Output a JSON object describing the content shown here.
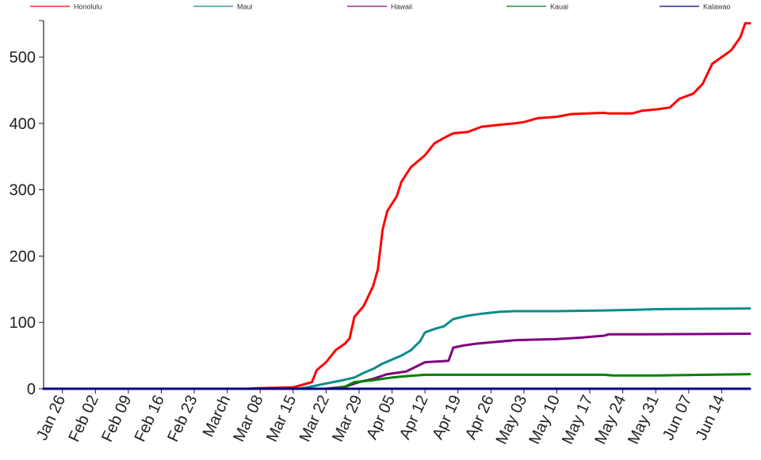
{
  "chart_data": {
    "type": "line",
    "title": "",
    "xlabel": "",
    "ylabel": "",
    "x_range": [
      "2020-01-22",
      "2020-06-20"
    ],
    "ylim": [
      0,
      555
    ],
    "yticks": [
      0,
      100,
      200,
      300,
      400,
      500
    ],
    "xticks": [
      {
        "date": "2020-01-26",
        "label": "Jan 26"
      },
      {
        "date": "2020-02-02",
        "label": "Feb 02"
      },
      {
        "date": "2020-02-09",
        "label": "Feb 09"
      },
      {
        "date": "2020-02-16",
        "label": "Feb 16"
      },
      {
        "date": "2020-02-23",
        "label": "Feb 23"
      },
      {
        "date": "2020-03-01",
        "label": "March"
      },
      {
        "date": "2020-03-08",
        "label": "Mar 08"
      },
      {
        "date": "2020-03-15",
        "label": "Mar 15"
      },
      {
        "date": "2020-03-22",
        "label": "Mar 22"
      },
      {
        "date": "2020-03-29",
        "label": "Mar 29"
      },
      {
        "date": "2020-04-05",
        "label": "Apr 05"
      },
      {
        "date": "2020-04-12",
        "label": "Apr 12"
      },
      {
        "date": "2020-04-19",
        "label": "Apr 19"
      },
      {
        "date": "2020-04-26",
        "label": "Apr 26"
      },
      {
        "date": "2020-05-03",
        "label": "May 03"
      },
      {
        "date": "2020-05-10",
        "label": "May 10"
      },
      {
        "date": "2020-05-17",
        "label": "May 17"
      },
      {
        "date": "2020-05-24",
        "label": "May 24"
      },
      {
        "date": "2020-05-31",
        "label": "May 31"
      },
      {
        "date": "2020-06-07",
        "label": "Jun 07"
      },
      {
        "date": "2020-06-14",
        "label": "Jun 14"
      }
    ],
    "legend_position": "top",
    "grid": false,
    "series": [
      {
        "name": "Honolulu",
        "color": "#ff0000",
        "points": [
          [
            "2020-01-22",
            0
          ],
          [
            "2020-03-05",
            0
          ],
          [
            "2020-03-08",
            1
          ],
          [
            "2020-03-15",
            2
          ],
          [
            "2020-03-17",
            6
          ],
          [
            "2020-03-19",
            10
          ],
          [
            "2020-03-20",
            28
          ],
          [
            "2020-03-22",
            40
          ],
          [
            "2020-03-24",
            58
          ],
          [
            "2020-03-26",
            68
          ],
          [
            "2020-03-27",
            76
          ],
          [
            "2020-03-28",
            108
          ],
          [
            "2020-03-30",
            125
          ],
          [
            "2020-04-01",
            155
          ],
          [
            "2020-04-02",
            180
          ],
          [
            "2020-04-03",
            240
          ],
          [
            "2020-04-04",
            268
          ],
          [
            "2020-04-06",
            290
          ],
          [
            "2020-04-07",
            312
          ],
          [
            "2020-04-09",
            334
          ],
          [
            "2020-04-11",
            346
          ],
          [
            "2020-04-12",
            352
          ],
          [
            "2020-04-14",
            370
          ],
          [
            "2020-04-16",
            378
          ],
          [
            "2020-04-18",
            385
          ],
          [
            "2020-04-21",
            387
          ],
          [
            "2020-04-24",
            395
          ],
          [
            "2020-04-28",
            398
          ],
          [
            "2020-05-01",
            400
          ],
          [
            "2020-05-03",
            402
          ],
          [
            "2020-05-06",
            408
          ],
          [
            "2020-05-10",
            410
          ],
          [
            "2020-05-13",
            414
          ],
          [
            "2020-05-20",
            416
          ],
          [
            "2020-05-21",
            415
          ],
          [
            "2020-05-26",
            415
          ],
          [
            "2020-05-28",
            419
          ],
          [
            "2020-05-31",
            421
          ],
          [
            "2020-06-03",
            424
          ],
          [
            "2020-06-05",
            437
          ],
          [
            "2020-06-08",
            445
          ],
          [
            "2020-06-10",
            460
          ],
          [
            "2020-06-12",
            490
          ],
          [
            "2020-06-14",
            500
          ],
          [
            "2020-06-16",
            510
          ],
          [
            "2020-06-18",
            530
          ],
          [
            "2020-06-19",
            551
          ],
          [
            "2020-06-20",
            551
          ]
        ]
      },
      {
        "name": "Maui",
        "color": "#0a8c8c",
        "points": [
          [
            "2020-01-22",
            0
          ],
          [
            "2020-03-16",
            0
          ],
          [
            "2020-03-18",
            2
          ],
          [
            "2020-03-20",
            5
          ],
          [
            "2020-03-22",
            8
          ],
          [
            "2020-03-25",
            12
          ],
          [
            "2020-03-28",
            17
          ],
          [
            "2020-03-30",
            24
          ],
          [
            "2020-04-01",
            30
          ],
          [
            "2020-04-03",
            38
          ],
          [
            "2020-04-05",
            44
          ],
          [
            "2020-04-07",
            50
          ],
          [
            "2020-04-09",
            58
          ],
          [
            "2020-04-11",
            72
          ],
          [
            "2020-04-12",
            85
          ],
          [
            "2020-04-14",
            90
          ],
          [
            "2020-04-16",
            94
          ],
          [
            "2020-04-18",
            105
          ],
          [
            "2020-04-21",
            110
          ],
          [
            "2020-04-24",
            113
          ],
          [
            "2020-04-28",
            116
          ],
          [
            "2020-05-01",
            117
          ],
          [
            "2020-05-10",
            117
          ],
          [
            "2020-05-20",
            118
          ],
          [
            "2020-05-27",
            119
          ],
          [
            "2020-05-31",
            120
          ],
          [
            "2020-06-20",
            121
          ]
        ]
      },
      {
        "name": "Hawaii",
        "color": "#800080",
        "points": [
          [
            "2020-01-22",
            0
          ],
          [
            "2020-03-22",
            0
          ],
          [
            "2020-03-26",
            3
          ],
          [
            "2020-03-29",
            10
          ],
          [
            "2020-04-01",
            15
          ],
          [
            "2020-04-04",
            22
          ],
          [
            "2020-04-08",
            26
          ],
          [
            "2020-04-10",
            33
          ],
          [
            "2020-04-12",
            40
          ],
          [
            "2020-04-17",
            42
          ],
          [
            "2020-04-18",
            62
          ],
          [
            "2020-04-20",
            65
          ],
          [
            "2020-04-23",
            68
          ],
          [
            "2020-04-26",
            70
          ],
          [
            "2020-05-01",
            73
          ],
          [
            "2020-05-05",
            74
          ],
          [
            "2020-05-10",
            75
          ],
          [
            "2020-05-15",
            77
          ],
          [
            "2020-05-20",
            80
          ],
          [
            "2020-05-21",
            82
          ],
          [
            "2020-05-28",
            82
          ],
          [
            "2020-06-20",
            83
          ]
        ]
      },
      {
        "name": "Kauai",
        "color": "#008000",
        "points": [
          [
            "2020-01-22",
            0
          ],
          [
            "2020-03-23",
            0
          ],
          [
            "2020-03-26",
            3
          ],
          [
            "2020-03-28",
            10
          ],
          [
            "2020-04-01",
            13
          ],
          [
            "2020-04-05",
            17
          ],
          [
            "2020-04-08",
            19
          ],
          [
            "2020-04-12",
            21
          ],
          [
            "2020-05-20",
            21
          ],
          [
            "2020-05-22",
            20
          ],
          [
            "2020-05-31",
            20
          ],
          [
            "2020-06-20",
            22
          ]
        ]
      },
      {
        "name": "Kalawao",
        "color": "#000080",
        "points": [
          [
            "2020-01-22",
            0
          ],
          [
            "2020-06-20",
            0
          ]
        ]
      }
    ]
  }
}
